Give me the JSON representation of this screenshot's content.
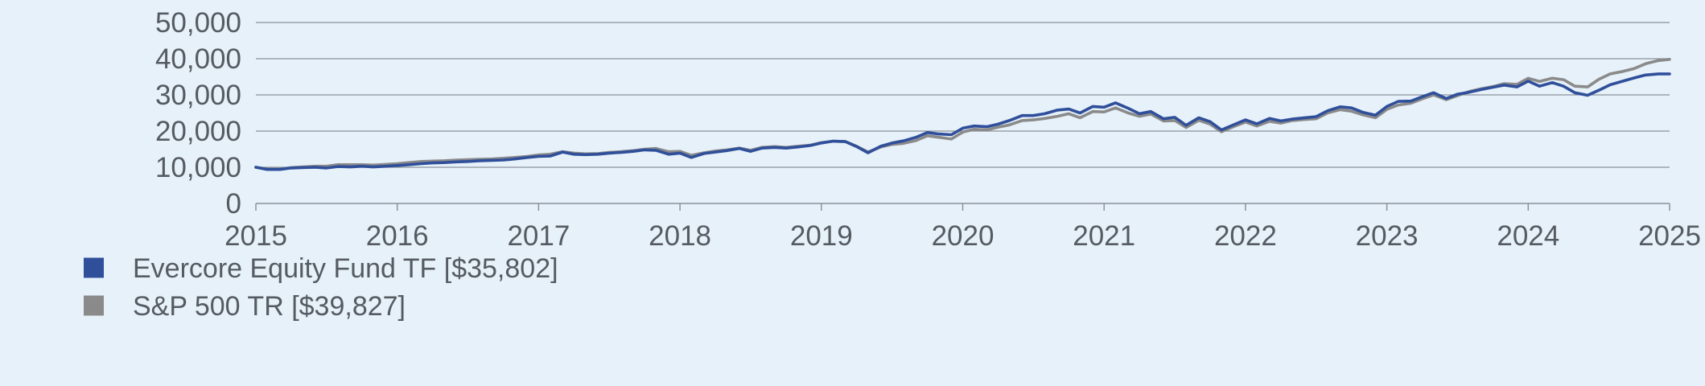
{
  "colors": {
    "background": "#e7f1fa",
    "grid": "#8a939c",
    "axis": "#8a939c",
    "text": "#555b61",
    "fund": "#2f4f9a",
    "index": "#8a8a8a"
  },
  "legend": [
    {
      "label": "Evercore Equity Fund TF [$35,802]",
      "color": "#2f4f9a",
      "icon": "square-swatch"
    },
    {
      "label": "S&P 500 TR [$39,827]",
      "color": "#8a8a8a",
      "icon": "square-swatch"
    }
  ],
  "chart_data": {
    "type": "line",
    "title": "",
    "xlabel": "",
    "ylabel": "",
    "xlim": [
      2015,
      2025
    ],
    "ylim": [
      0,
      50000
    ],
    "grid": true,
    "legend_position": "bottom-left",
    "y_ticks": [
      {
        "value": 0,
        "label": "0"
      },
      {
        "value": 10000,
        "label": "10,000"
      },
      {
        "value": 20000,
        "label": "20,000"
      },
      {
        "value": 30000,
        "label": "30,000"
      },
      {
        "value": 40000,
        "label": "40,000"
      },
      {
        "value": 50000,
        "label": "50,000"
      }
    ],
    "x_ticks": [
      {
        "value": 2015,
        "label": "2015"
      },
      {
        "value": 2016,
        "label": "2016"
      },
      {
        "value": 2017,
        "label": "2017"
      },
      {
        "value": 2018,
        "label": "2018"
      },
      {
        "value": 2019,
        "label": "2019"
      },
      {
        "value": 2020,
        "label": "2020"
      },
      {
        "value": 2021,
        "label": "2021"
      },
      {
        "value": 2022,
        "label": "2022"
      },
      {
        "value": 2023,
        "label": "2023"
      },
      {
        "value": 2024,
        "label": "2024"
      },
      {
        "value": 2025,
        "label": "2025"
      }
    ],
    "series": [
      {
        "name": "Evercore Equity Fund TF [$35,802]",
        "color": "#2f4f9a",
        "points": [
          [
            2015.0,
            10000
          ],
          [
            2015.08,
            9400
          ],
          [
            2015.17,
            9400
          ],
          [
            2015.25,
            9800
          ],
          [
            2015.33,
            9900
          ],
          [
            2015.42,
            10000
          ],
          [
            2015.5,
            9800
          ],
          [
            2015.58,
            10200
          ],
          [
            2015.67,
            10100
          ],
          [
            2015.75,
            10300
          ],
          [
            2015.83,
            10100
          ],
          [
            2015.92,
            10300
          ],
          [
            2016.0,
            10500
          ],
          [
            2016.08,
            10700
          ],
          [
            2016.17,
            11000
          ],
          [
            2016.25,
            11200
          ],
          [
            2016.33,
            11300
          ],
          [
            2016.42,
            11500
          ],
          [
            2016.5,
            11600
          ],
          [
            2016.58,
            11800
          ],
          [
            2016.67,
            11900
          ],
          [
            2016.75,
            12000
          ],
          [
            2016.83,
            12300
          ],
          [
            2016.92,
            12700
          ],
          [
            2017.0,
            13000
          ],
          [
            2017.08,
            13100
          ],
          [
            2017.17,
            14200
          ],
          [
            2017.25,
            13600
          ],
          [
            2017.33,
            13500
          ],
          [
            2017.42,
            13600
          ],
          [
            2017.5,
            13900
          ],
          [
            2017.58,
            14100
          ],
          [
            2017.67,
            14400
          ],
          [
            2017.75,
            14800
          ],
          [
            2017.83,
            14700
          ],
          [
            2017.92,
            13600
          ],
          [
            2018.0,
            13900
          ],
          [
            2018.08,
            12700
          ],
          [
            2018.17,
            13800
          ],
          [
            2018.25,
            14200
          ],
          [
            2018.33,
            14600
          ],
          [
            2018.42,
            15200
          ],
          [
            2018.5,
            14400
          ],
          [
            2018.58,
            15300
          ],
          [
            2018.67,
            15500
          ],
          [
            2018.75,
            15300
          ],
          [
            2018.83,
            15600
          ],
          [
            2018.92,
            16000
          ],
          [
            2019.0,
            16700
          ],
          [
            2019.08,
            17200
          ],
          [
            2019.17,
            17100
          ],
          [
            2019.25,
            15700
          ],
          [
            2019.33,
            14000
          ],
          [
            2019.42,
            15800
          ],
          [
            2019.5,
            16700
          ],
          [
            2019.58,
            17300
          ],
          [
            2019.67,
            18300
          ],
          [
            2019.75,
            19600
          ],
          [
            2019.83,
            19200
          ],
          [
            2019.92,
            19000
          ],
          [
            2020.0,
            20800
          ],
          [
            2020.08,
            21400
          ],
          [
            2020.17,
            21200
          ],
          [
            2020.25,
            21900
          ],
          [
            2020.33,
            22900
          ],
          [
            2020.42,
            24300
          ],
          [
            2020.5,
            24300
          ],
          [
            2020.58,
            24800
          ],
          [
            2020.67,
            25800
          ],
          [
            2020.75,
            26100
          ],
          [
            2020.83,
            25000
          ],
          [
            2020.92,
            26800
          ],
          [
            2021.0,
            26600
          ],
          [
            2021.08,
            27800
          ],
          [
            2021.17,
            26300
          ],
          [
            2021.25,
            24800
          ],
          [
            2021.33,
            25400
          ],
          [
            2021.42,
            23400
          ],
          [
            2021.5,
            23800
          ],
          [
            2021.58,
            21600
          ],
          [
            2021.67,
            23700
          ],
          [
            2021.75,
            22600
          ],
          [
            2021.83,
            20300
          ],
          [
            2021.92,
            21800
          ],
          [
            2022.0,
            23100
          ],
          [
            2022.08,
            22000
          ],
          [
            2022.17,
            23500
          ],
          [
            2022.25,
            22800
          ],
          [
            2022.33,
            23300
          ],
          [
            2022.42,
            23700
          ],
          [
            2022.5,
            24000
          ],
          [
            2022.58,
            25600
          ],
          [
            2022.67,
            26700
          ],
          [
            2022.75,
            26400
          ],
          [
            2022.83,
            25200
          ],
          [
            2022.92,
            24400
          ],
          [
            2023.0,
            26800
          ],
          [
            2023.08,
            28200
          ],
          [
            2023.17,
            28300
          ],
          [
            2023.25,
            29500
          ],
          [
            2023.33,
            30600
          ],
          [
            2023.42,
            29000
          ],
          [
            2023.5,
            30200
          ],
          [
            2023.58,
            30700
          ],
          [
            2023.67,
            31500
          ],
          [
            2023.75,
            32100
          ],
          [
            2023.83,
            32700
          ],
          [
            2023.92,
            32200
          ],
          [
            2024.0,
            33800
          ],
          [
            2024.08,
            32400
          ],
          [
            2024.17,
            33400
          ],
          [
            2024.25,
            32400
          ],
          [
            2024.33,
            30600
          ],
          [
            2024.42,
            29900
          ],
          [
            2024.5,
            31300
          ],
          [
            2024.58,
            32800
          ],
          [
            2024.67,
            33800
          ],
          [
            2024.75,
            34700
          ],
          [
            2024.83,
            35500
          ],
          [
            2024.92,
            35800
          ],
          [
            2025.0,
            35802
          ]
        ]
      },
      {
        "name": "S&P 500 TR [$39,827]",
        "color": "#8a8a8a",
        "points": [
          [
            2015.0,
            10000
          ],
          [
            2015.08,
            9500
          ],
          [
            2015.17,
            9500
          ],
          [
            2015.25,
            9900
          ],
          [
            2015.33,
            10100
          ],
          [
            2015.42,
            10300
          ],
          [
            2015.5,
            10300
          ],
          [
            2015.58,
            10700
          ],
          [
            2015.67,
            10700
          ],
          [
            2015.75,
            10700
          ],
          [
            2015.83,
            10600
          ],
          [
            2015.92,
            10800
          ],
          [
            2016.0,
            11000
          ],
          [
            2016.08,
            11300
          ],
          [
            2016.17,
            11600
          ],
          [
            2016.25,
            11700
          ],
          [
            2016.33,
            11800
          ],
          [
            2016.42,
            12000
          ],
          [
            2016.5,
            12100
          ],
          [
            2016.58,
            12200
          ],
          [
            2016.67,
            12300
          ],
          [
            2016.75,
            12500
          ],
          [
            2016.83,
            12700
          ],
          [
            2016.92,
            13000
          ],
          [
            2017.0,
            13400
          ],
          [
            2017.08,
            13600
          ],
          [
            2017.17,
            14300
          ],
          [
            2017.25,
            13900
          ],
          [
            2017.33,
            13700
          ],
          [
            2017.42,
            13800
          ],
          [
            2017.5,
            14100
          ],
          [
            2017.58,
            14300
          ],
          [
            2017.67,
            14600
          ],
          [
            2017.75,
            15000
          ],
          [
            2017.83,
            15200
          ],
          [
            2017.92,
            14300
          ],
          [
            2018.0,
            14400
          ],
          [
            2018.08,
            13300
          ],
          [
            2018.17,
            14000
          ],
          [
            2018.25,
            14500
          ],
          [
            2018.33,
            14800
          ],
          [
            2018.42,
            15300
          ],
          [
            2018.5,
            14700
          ],
          [
            2018.58,
            15500
          ],
          [
            2018.67,
            15700
          ],
          [
            2018.75,
            15500
          ],
          [
            2018.83,
            15800
          ],
          [
            2018.92,
            16100
          ],
          [
            2019.0,
            16800
          ],
          [
            2019.08,
            17200
          ],
          [
            2019.17,
            17100
          ],
          [
            2019.25,
            15800
          ],
          [
            2019.33,
            14200
          ],
          [
            2019.42,
            15600
          ],
          [
            2019.5,
            16300
          ],
          [
            2019.58,
            16600
          ],
          [
            2019.67,
            17400
          ],
          [
            2019.75,
            18700
          ],
          [
            2019.83,
            18300
          ],
          [
            2019.92,
            17800
          ],
          [
            2020.0,
            19700
          ],
          [
            2020.08,
            20500
          ],
          [
            2020.17,
            20300
          ],
          [
            2020.25,
            21100
          ],
          [
            2020.33,
            21700
          ],
          [
            2020.42,
            22900
          ],
          [
            2020.5,
            23100
          ],
          [
            2020.58,
            23500
          ],
          [
            2020.67,
            24100
          ],
          [
            2020.75,
            24800
          ],
          [
            2020.83,
            23700
          ],
          [
            2020.92,
            25400
          ],
          [
            2021.0,
            25300
          ],
          [
            2021.08,
            26400
          ],
          [
            2021.17,
            25000
          ],
          [
            2021.25,
            24100
          ],
          [
            2021.33,
            24700
          ],
          [
            2021.42,
            22800
          ],
          [
            2021.5,
            22900
          ],
          [
            2021.58,
            21000
          ],
          [
            2021.67,
            23000
          ],
          [
            2021.75,
            21900
          ],
          [
            2021.83,
            19800
          ],
          [
            2021.92,
            21300
          ],
          [
            2022.0,
            22500
          ],
          [
            2022.08,
            21400
          ],
          [
            2022.17,
            22700
          ],
          [
            2022.25,
            22200
          ],
          [
            2022.33,
            22900
          ],
          [
            2022.42,
            23200
          ],
          [
            2022.5,
            23400
          ],
          [
            2022.58,
            25000
          ],
          [
            2022.67,
            25900
          ],
          [
            2022.75,
            25500
          ],
          [
            2022.83,
            24500
          ],
          [
            2022.92,
            23700
          ],
          [
            2023.0,
            26000
          ],
          [
            2023.08,
            27200
          ],
          [
            2023.17,
            27700
          ],
          [
            2023.25,
            28900
          ],
          [
            2023.33,
            30000
          ],
          [
            2023.42,
            28700
          ],
          [
            2023.5,
            29800
          ],
          [
            2023.58,
            30900
          ],
          [
            2023.67,
            31700
          ],
          [
            2023.75,
            32300
          ],
          [
            2023.83,
            33100
          ],
          [
            2023.92,
            32900
          ],
          [
            2024.0,
            34600
          ],
          [
            2024.08,
            33700
          ],
          [
            2024.17,
            34600
          ],
          [
            2024.25,
            34200
          ],
          [
            2024.33,
            32400
          ],
          [
            2024.42,
            32200
          ],
          [
            2024.5,
            34300
          ],
          [
            2024.58,
            35800
          ],
          [
            2024.67,
            36500
          ],
          [
            2024.75,
            37300
          ],
          [
            2024.83,
            38600
          ],
          [
            2024.92,
            39500
          ],
          [
            2025.0,
            39827
          ]
        ]
      }
    ]
  }
}
